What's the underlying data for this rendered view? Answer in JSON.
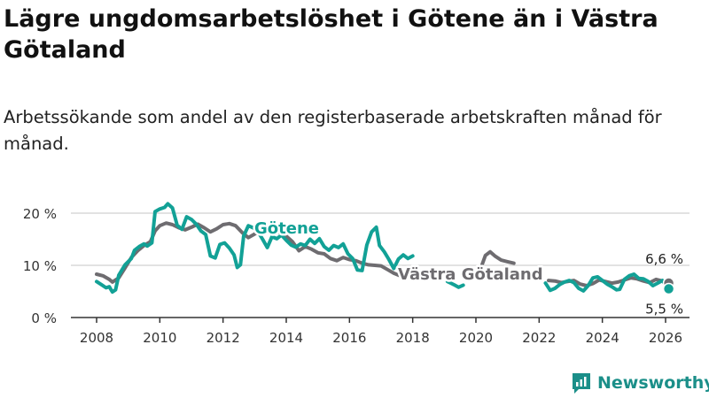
{
  "title": "Lägre ungdomsarbetslöshet i Götene än i Västra Götaland",
  "subtitle": "Arbetssökande som andel av den registerbaserade arbetskraften månad för månad.",
  "brand": {
    "name": "Newsworthy",
    "icon": "newsworthy-logo-icon"
  },
  "colors": {
    "gotene": "#12a196",
    "vg": "#6e6c70",
    "grid": "#d9d9d9",
    "axis": "#333333"
  },
  "chart_data": {
    "type": "line",
    "title": "Lägre ungdomsarbetslöshet i Götene än i Västra Götaland",
    "xlabel": "",
    "ylabel": "",
    "xlim": [
      2007.2,
      2026.9
    ],
    "ylim": [
      0,
      20
    ],
    "x_ticks": [
      {
        "value": 2008,
        "label": "2008"
      },
      {
        "value": 2010,
        "label": "2010"
      },
      {
        "value": 2012,
        "label": "2012"
      },
      {
        "value": 2014,
        "label": "2014"
      },
      {
        "value": 2016,
        "label": "2016"
      },
      {
        "value": 2018,
        "label": "2018"
      },
      {
        "value": 2020,
        "label": "2020"
      },
      {
        "value": 2022,
        "label": "2022"
      },
      {
        "value": 2024,
        "label": "2024"
      },
      {
        "value": 2026,
        "label": "2026"
      }
    ],
    "y_ticks": [
      {
        "value": 0,
        "label": "0 %"
      },
      {
        "value": 10,
        "label": "10 %"
      },
      {
        "value": 20,
        "label": "20 %"
      }
    ],
    "grid": true,
    "series": [
      {
        "key": "vg",
        "name": "Västra Götaland",
        "end_label": "6,6 %",
        "points": [
          [
            2008.0,
            8.3
          ],
          [
            2008.2,
            8.0
          ],
          [
            2008.4,
            7.3
          ],
          [
            2008.5,
            6.8
          ],
          [
            2008.7,
            7.6
          ],
          [
            2008.9,
            9.5
          ],
          [
            2009.1,
            11.5
          ],
          [
            2009.3,
            12.8
          ],
          [
            2009.5,
            13.8
          ],
          [
            2009.7,
            14.5
          ],
          [
            2009.85,
            16.6
          ],
          [
            2010.0,
            17.6
          ],
          [
            2010.2,
            18.1
          ],
          [
            2010.4,
            17.8
          ],
          [
            2010.6,
            17.2
          ],
          [
            2010.8,
            16.8
          ],
          [
            2011.0,
            17.3
          ],
          [
            2011.2,
            17.9
          ],
          [
            2011.4,
            17.2
          ],
          [
            2011.6,
            16.4
          ],
          [
            2011.8,
            17.0
          ],
          [
            2012.0,
            17.8
          ],
          [
            2012.2,
            18.0
          ],
          [
            2012.4,
            17.6
          ],
          [
            2012.6,
            16.3
          ],
          [
            2012.8,
            15.3
          ],
          [
            2013.0,
            16.0
          ],
          [
            2013.2,
            16.6
          ],
          [
            2013.4,
            17.5
          ],
          [
            2013.6,
            16.9
          ],
          [
            2013.8,
            16.2
          ],
          [
            2014.0,
            15.6
          ],
          [
            2014.2,
            14.5
          ],
          [
            2014.4,
            12.8
          ],
          [
            2014.6,
            13.6
          ],
          [
            2014.8,
            13.1
          ],
          [
            2015.0,
            12.4
          ],
          [
            2015.2,
            12.2
          ],
          [
            2015.4,
            11.3
          ],
          [
            2015.6,
            10.9
          ],
          [
            2015.8,
            11.5
          ],
          [
            2016.0,
            11.1
          ],
          [
            2016.2,
            10.9
          ],
          [
            2016.4,
            10.4
          ],
          [
            2016.6,
            10.1
          ],
          [
            2016.8,
            10.0
          ],
          [
            2017.0,
            9.9
          ],
          [
            2017.2,
            9.2
          ],
          [
            2017.4,
            8.5
          ],
          [
            2017.6,
            8.0
          ],
          [
            2017.8,
            8.3
          ],
          [
            2018.0,
            7.9
          ]
        ]
      },
      {
        "key": "vg2",
        "name": "Västra Götaland",
        "points": [
          [
            2020.2,
            10.2
          ],
          [
            2020.3,
            11.9
          ],
          [
            2020.45,
            12.6
          ],
          [
            2020.6,
            11.8
          ],
          [
            2020.8,
            11.0
          ],
          [
            2021.0,
            10.7
          ],
          [
            2021.2,
            10.4
          ]
        ]
      },
      {
        "key": "vg3",
        "name": "Västra Götaland",
        "points": [
          [
            2022.3,
            7.1
          ],
          [
            2022.5,
            7.0
          ],
          [
            2022.7,
            6.7
          ],
          [
            2022.9,
            6.9
          ],
          [
            2023.1,
            7.1
          ],
          [
            2023.3,
            6.4
          ],
          [
            2023.5,
            6.1
          ],
          [
            2023.7,
            6.5
          ],
          [
            2023.9,
            7.2
          ],
          [
            2024.1,
            6.9
          ],
          [
            2024.3,
            6.6
          ],
          [
            2024.5,
            6.8
          ],
          [
            2024.7,
            7.2
          ],
          [
            2024.9,
            7.6
          ],
          [
            2025.1,
            7.4
          ],
          [
            2025.3,
            7.0
          ],
          [
            2025.5,
            6.7
          ],
          [
            2025.7,
            7.3
          ],
          [
            2025.9,
            7.0
          ],
          [
            2026.0,
            6.7
          ],
          [
            2026.1,
            6.6
          ]
        ]
      },
      {
        "key": "gotene",
        "name": "Götene",
        "end_label": "5,5 %",
        "points": [
          [
            2008.0,
            6.9
          ],
          [
            2008.15,
            6.3
          ],
          [
            2008.3,
            5.7
          ],
          [
            2008.4,
            5.9
          ],
          [
            2008.5,
            4.9
          ],
          [
            2008.6,
            5.3
          ],
          [
            2008.7,
            8.1
          ],
          [
            2008.9,
            10.1
          ],
          [
            2009.1,
            11.3
          ],
          [
            2009.2,
            12.9
          ],
          [
            2009.35,
            13.6
          ],
          [
            2009.5,
            14.1
          ],
          [
            2009.6,
            13.7
          ],
          [
            2009.75,
            14.3
          ],
          [
            2009.85,
            20.3
          ],
          [
            2010.0,
            20.8
          ],
          [
            2010.15,
            21.1
          ],
          [
            2010.25,
            21.8
          ],
          [
            2010.4,
            21.0
          ],
          [
            2010.55,
            17.7
          ],
          [
            2010.7,
            16.9
          ],
          [
            2010.85,
            19.3
          ],
          [
            2011.0,
            18.8
          ],
          [
            2011.15,
            17.9
          ],
          [
            2011.3,
            16.6
          ],
          [
            2011.45,
            15.9
          ],
          [
            2011.6,
            11.8
          ],
          [
            2011.75,
            11.4
          ],
          [
            2011.9,
            14.0
          ],
          [
            2012.05,
            14.3
          ],
          [
            2012.2,
            13.3
          ],
          [
            2012.35,
            12.0
          ],
          [
            2012.45,
            9.6
          ],
          [
            2012.55,
            10.1
          ],
          [
            2012.65,
            15.6
          ],
          [
            2012.8,
            17.6
          ],
          [
            2012.95,
            17.2
          ],
          [
            2013.1,
            16.5
          ],
          [
            2013.25,
            15.0
          ],
          [
            2013.4,
            13.4
          ],
          [
            2013.55,
            15.5
          ],
          [
            2013.7,
            15.1
          ],
          [
            2013.85,
            15.8
          ],
          [
            2014.0,
            14.8
          ],
          [
            2014.15,
            13.9
          ],
          [
            2014.3,
            13.5
          ],
          [
            2014.45,
            14.1
          ],
          [
            2014.6,
            13.8
          ],
          [
            2014.75,
            15.0
          ],
          [
            2014.9,
            14.2
          ],
          [
            2015.05,
            15.1
          ],
          [
            2015.2,
            13.6
          ],
          [
            2015.35,
            12.9
          ],
          [
            2015.5,
            13.8
          ],
          [
            2015.65,
            13.4
          ],
          [
            2015.8,
            14.1
          ],
          [
            2015.95,
            12.2
          ],
          [
            2016.1,
            11.3
          ],
          [
            2016.25,
            9.1
          ],
          [
            2016.4,
            9.0
          ],
          [
            2016.55,
            13.9
          ],
          [
            2016.7,
            16.4
          ],
          [
            2016.85,
            17.3
          ],
          [
            2016.95,
            13.8
          ],
          [
            2017.1,
            12.6
          ],
          [
            2017.25,
            11.1
          ],
          [
            2017.4,
            9.4
          ],
          [
            2017.55,
            11.2
          ],
          [
            2017.7,
            12.0
          ],
          [
            2017.85,
            11.3
          ],
          [
            2018.0,
            11.8
          ]
        ]
      },
      {
        "key": "gotene2",
        "name": "Götene",
        "points": [
          [
            2019.1,
            6.9
          ],
          [
            2019.3,
            6.3
          ],
          [
            2019.45,
            5.8
          ],
          [
            2019.6,
            6.2
          ]
        ]
      },
      {
        "key": "gotene3",
        "name": "Götene",
        "points": [
          [
            2022.2,
            6.6
          ],
          [
            2022.35,
            5.2
          ],
          [
            2022.5,
            5.6
          ],
          [
            2022.65,
            6.3
          ],
          [
            2022.8,
            6.8
          ],
          [
            2022.95,
            7.1
          ],
          [
            2023.1,
            6.7
          ],
          [
            2023.25,
            5.6
          ],
          [
            2023.4,
            5.1
          ],
          [
            2023.55,
            6.1
          ],
          [
            2023.7,
            7.6
          ],
          [
            2023.85,
            7.8
          ],
          [
            2024.0,
            7.1
          ],
          [
            2024.15,
            6.4
          ],
          [
            2024.3,
            5.9
          ],
          [
            2024.45,
            5.3
          ],
          [
            2024.55,
            5.4
          ],
          [
            2024.7,
            7.3
          ],
          [
            2024.85,
            8.0
          ],
          [
            2025.0,
            8.3
          ],
          [
            2025.15,
            7.5
          ],
          [
            2025.3,
            7.4
          ],
          [
            2025.45,
            6.9
          ],
          [
            2025.6,
            6.1
          ],
          [
            2025.75,
            6.6
          ],
          [
            2025.9,
            7.1
          ],
          [
            2026.0,
            6.3
          ],
          [
            2026.1,
            5.5
          ]
        ]
      }
    ],
    "annotations": [
      {
        "key": "gotene",
        "text": "Götene"
      },
      {
        "key": "vg",
        "text": "Västra Götaland"
      }
    ]
  }
}
